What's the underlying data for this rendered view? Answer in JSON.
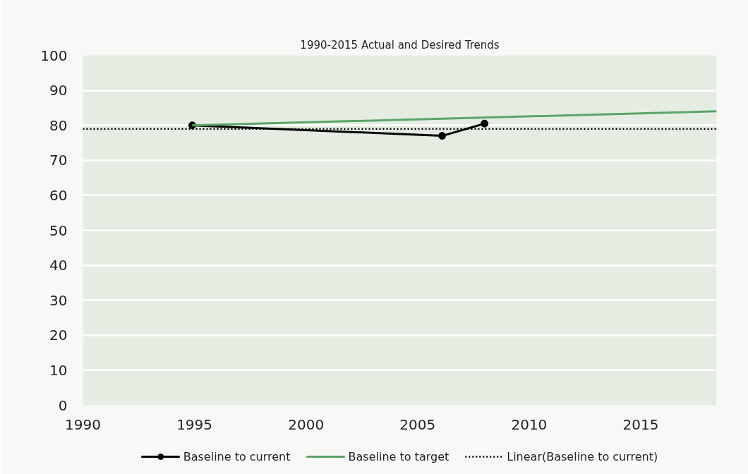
{
  "chart_data": {
    "type": "line",
    "title": "1990-2015 Actual and Desired Trends",
    "xlim": [
      1990,
      2018.4
    ],
    "xticks": [
      1990,
      1995,
      2000,
      2005,
      2010,
      2015
    ],
    "ylim": [
      0,
      100
    ],
    "yticks": [
      0,
      10,
      20,
      30,
      40,
      50,
      60,
      70,
      80,
      90,
      100
    ],
    "grid": "y",
    "legend": "bottom",
    "series": [
      {
        "name": "Baseline to current",
        "color": "#000000",
        "x": [
          1994.9,
          2006.1,
          2008
        ],
        "values": [
          80,
          77,
          80.5
        ],
        "marker": "circle",
        "line_style": "solid"
      },
      {
        "name": "Baseline to target",
        "color": "#5aa469",
        "x": [
          1994.9,
          2018.4
        ],
        "values": [
          80,
          84
        ],
        "marker": "none",
        "line_style": "solid"
      },
      {
        "name": "Linear(Baseline to current)",
        "color": "#000000",
        "x": [
          1990,
          2018.4
        ],
        "values": [
          79,
          79
        ],
        "marker": "none",
        "line_style": "dotted"
      }
    ]
  }
}
